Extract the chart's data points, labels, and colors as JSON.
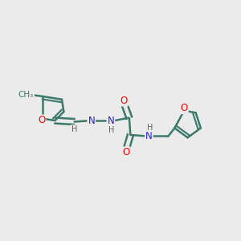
{
  "bg_color": "#ebebeb",
  "bond_color": "#3d7a6b",
  "bond_width": 1.8,
  "dbo": 0.12,
  "atom_colors": {
    "O": "#ff0000",
    "N": "#2222cc",
    "H": "#606060",
    "C": "#3d7a6b"
  },
  "fs": 8.5,
  "fsH": 7.0,
  "fsMe": 8.0
}
